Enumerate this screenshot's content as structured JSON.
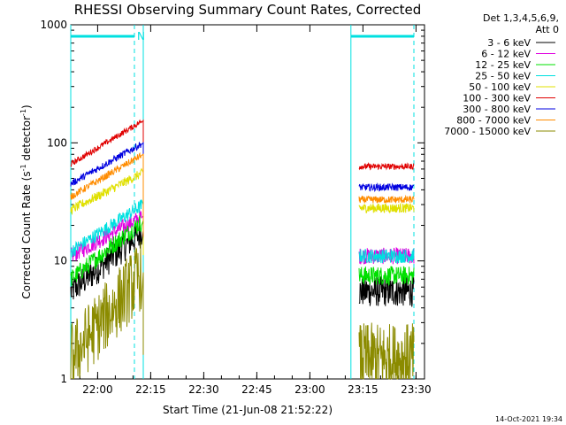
{
  "chart_data": {
    "type": "line",
    "title": "RHESSI Observing Summary Count Rates, Corrected",
    "xlabel": "Start Time (21-Jun-08 21:52:22)",
    "ylabel_main": "Corrected Count Rate (s",
    "ylabel_sup1": "-1",
    "ylabel_mid": " detector",
    "ylabel_sup2": "-1",
    "ylabel_end": ")",
    "yscale": "log",
    "ylim": [
      1,
      1000
    ],
    "xlim_minutes": [
      0,
      100
    ],
    "x_ticks": [
      {
        "label": "22:00",
        "minute": 7.6
      },
      {
        "label": "22:15",
        "minute": 22.6
      },
      {
        "label": "22:30",
        "minute": 37.6
      },
      {
        "label": "22:45",
        "minute": 52.6
      },
      {
        "label": "23:00",
        "minute": 67.6
      },
      {
        "label": "23:15",
        "minute": 82.6
      },
      {
        "label": "23:30",
        "minute": 97.6
      }
    ],
    "y_ticks": [
      {
        "label": "1",
        "value": 1
      },
      {
        "label": "10",
        "value": 10
      },
      {
        "label": "100",
        "value": 100
      },
      {
        "label": "1000",
        "value": 1000
      }
    ],
    "legend_header": [
      "Det 1,3,4,5,6,9,",
      "Att 0"
    ],
    "night_marker_label": "N",
    "segments": [
      [
        0,
        20.5
      ],
      [
        79.2,
        97.0
      ]
    ],
    "vertical_lines_solid": [
      0,
      20.5,
      79.2
    ],
    "vertical_lines_dashed": [
      18.0,
      97.0
    ],
    "series": [
      {
        "name": "3 - 6 keV",
        "color": "#000000",
        "start": [
          5.5,
          5.5
        ],
        "end": [
          18,
          18
        ],
        "late": [
          5.5,
          5.5
        ],
        "noise": 0.13
      },
      {
        "name": "6 - 12 keV",
        "color": "#e000e0",
        "start": [
          11,
          11
        ],
        "end": [
          24,
          24
        ],
        "late": [
          11,
          11
        ],
        "noise": 0.07
      },
      {
        "name": "12 - 25 keV",
        "color": "#00e000",
        "start": [
          7,
          7
        ],
        "end": [
          22,
          22
        ],
        "late": [
          7.5,
          7.5
        ],
        "noise": 0.08
      },
      {
        "name": "25 - 50 keV",
        "color": "#00e0e0",
        "start": [
          12,
          12
        ],
        "end": [
          30,
          30
        ],
        "late": [
          11,
          11
        ],
        "noise": 0.06
      },
      {
        "name": "50 - 100 keV",
        "color": "#e0e000",
        "start": [
          27,
          27
        ],
        "end": [
          56,
          56
        ],
        "late": [
          28,
          28
        ],
        "noise": 0.04
      },
      {
        "name": "100 - 300 keV",
        "color": "#e00000",
        "start": [
          66,
          66
        ],
        "end": [
          155,
          155
        ],
        "late": [
          63,
          63
        ],
        "noise": 0.025
      },
      {
        "name": "300 - 800 keV",
        "color": "#0000e0",
        "start": [
          45,
          45
        ],
        "end": [
          100,
          100
        ],
        "late": [
          42,
          42
        ],
        "noise": 0.03
      },
      {
        "name": "800 - 7000 keV",
        "color": "#ff8c00",
        "start": [
          35,
          35
        ],
        "end": [
          80,
          80
        ],
        "late": [
          33,
          33
        ],
        "noise": 0.03
      },
      {
        "name": "7000 - 15000 keV",
        "color": "#8b8b00",
        "start": [
          1.5,
          1.5
        ],
        "end": [
          8,
          8
        ],
        "late": [
          1.5,
          1.5
        ],
        "noise": 0.3
      }
    ]
  },
  "footer_timestamp": "14-Oct-2021 19:34"
}
